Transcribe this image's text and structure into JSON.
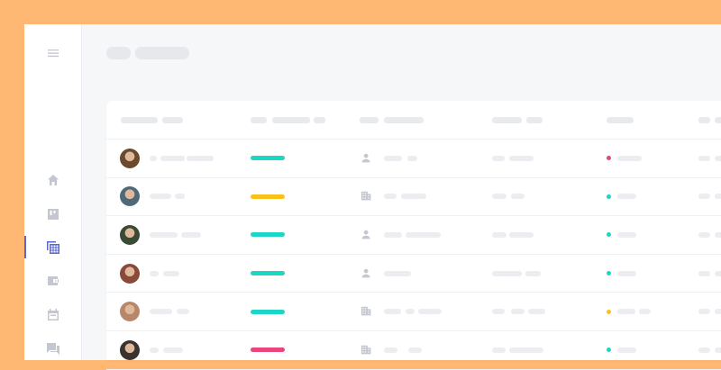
{
  "sidebar": {
    "items": [
      {
        "icon": "menu-icon"
      },
      {
        "icon": "home-icon"
      },
      {
        "icon": "board-icon"
      },
      {
        "icon": "table-icon",
        "active": true
      },
      {
        "icon": "wallet-icon"
      },
      {
        "icon": "calendar-icon"
      },
      {
        "icon": "chat-icon"
      }
    ]
  },
  "colors": {
    "background": "#FFB873",
    "accent": "#5a67d8",
    "teal": "#1ed6c5",
    "yellow": "#f9c21a",
    "pink": "#e8467c"
  },
  "table": {
    "rows": [
      {
        "avatar_color": "#6b4a2e",
        "progress_color": "#1ed6c5",
        "type_icon": "person-icon",
        "status_color": "#e8467c"
      },
      {
        "avatar_color": "#4e6a78",
        "progress_color": "#f9c21a",
        "type_icon": "building-icon",
        "status_color": "#1ed6c5"
      },
      {
        "avatar_color": "#3a4a35",
        "progress_color": "#1ed6c5",
        "type_icon": "person-icon",
        "status_color": "#1ed6c5"
      },
      {
        "avatar_color": "#8a4a3a",
        "progress_color": "#1ed6c5",
        "type_icon": "person-icon",
        "status_color": "#1ed6c5"
      },
      {
        "avatar_color": "#b8876a",
        "progress_color": "#1ed6c5",
        "type_icon": "building-icon",
        "status_color": "#f9c21a"
      },
      {
        "avatar_color": "#3a3330",
        "progress_color": "#e8467c",
        "type_icon": "building-icon",
        "status_color": "#1ed6c5"
      }
    ]
  }
}
